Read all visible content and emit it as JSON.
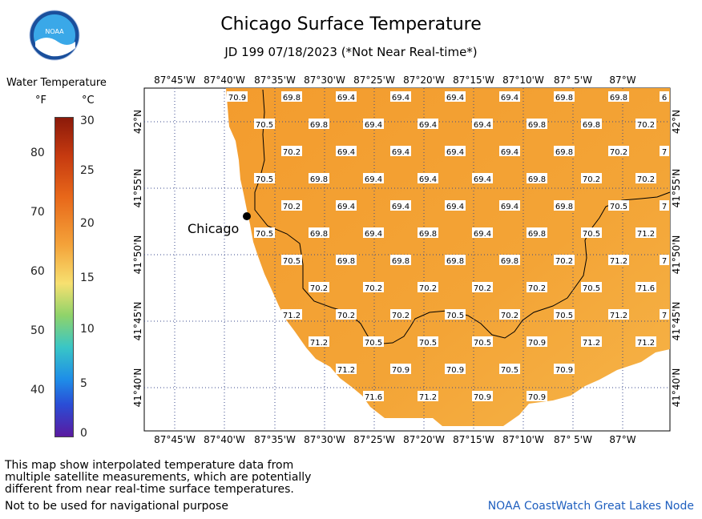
{
  "header": {
    "title": "Chicago Surface Temperature",
    "subtitle": "JD 199 07/18/2023 (*Not Near Real-time*)",
    "logo_text": "NOAA"
  },
  "legend": {
    "title": "Water Temperature",
    "unit_f": "°F",
    "unit_c": "°C",
    "f_ticks": [
      "80",
      "70",
      "60",
      "50",
      "40"
    ],
    "c_ticks": [
      "30",
      "25",
      "20",
      "15",
      "10",
      "5",
      "0"
    ]
  },
  "map": {
    "top_lon_labels": [
      "87°45'W",
      "87°40'W",
      "87°35'W",
      "87°30'W",
      "87°25'W",
      "87°20'W",
      "87°15'W",
      "87°10'W",
      "87° 5'W",
      "87°W"
    ],
    "bottom_lon_labels": [
      "87°45'W",
      "87°40'W",
      "87°35'W",
      "87°30'W",
      "87°25'W",
      "87°20'W",
      "87°15'W",
      "87°10'W",
      "87° 5'W",
      "87°W"
    ],
    "left_lat_labels": [
      "42°N",
      "41°55'N",
      "41°50'N",
      "41°45'N",
      "41°40'N"
    ],
    "right_lat_labels": [
      "42°N",
      "41°55'N",
      "41°50'N",
      "41°45'N",
      "41°40'N"
    ],
    "city_label": "Chicago",
    "temp_rows": [
      [
        "70.9",
        "69.8",
        "69.4",
        "69.4",
        "69.4",
        "69.4",
        "69.8",
        "69.8",
        "6"
      ],
      [
        "70.5",
        "69.8",
        "69.4",
        "69.4",
        "69.4",
        "69.8",
        "69.8",
        "70.2"
      ],
      [
        "70.2",
        "69.4",
        "69.4",
        "69.4",
        "69.4",
        "69.8",
        "70.2",
        "7"
      ],
      [
        "70.5",
        "69.8",
        "69.4",
        "69.4",
        "69.4",
        "69.8",
        "70.2",
        "70.2"
      ],
      [
        "70.2",
        "69.4",
        "69.4",
        "69.4",
        "69.4",
        "69.8",
        "70.5",
        "7"
      ],
      [
        "70.5",
        "69.8",
        "69.4",
        "69.8",
        "69.4",
        "69.8",
        "70.5",
        "71.2"
      ],
      [
        "70.5",
        "69.8",
        "69.8",
        "69.8",
        "69.8",
        "70.2",
        "71.2",
        "7"
      ],
      [
        "70.2",
        "70.2",
        "70.2",
        "70.2",
        "70.2",
        "70.5",
        "71.6"
      ],
      [
        "71.2",
        "70.2",
        "70.2",
        "70.5",
        "70.2",
        "70.5",
        "71.2",
        "7"
      ],
      [
        "71.2",
        "70.5",
        "70.5",
        "70.5",
        "70.9",
        "71.2",
        "71.2"
      ],
      [
        "71.2",
        "70.9",
        "70.9",
        "70.5",
        "70.9"
      ],
      [
        "71.6",
        "71.2",
        "70.9",
        "70.9"
      ]
    ]
  },
  "footer": {
    "note_line1": "This map show interpolated temperature data from",
    "note_line2": "multiple satellite measurements, which are potentially",
    "note_line3": "different from near real-time surface temperatures.",
    "navigation_note": "Not to be used for navigational purpose",
    "credit": "NOAA CoastWatch Great Lakes Node"
  },
  "colors": {
    "water": "#f2a334",
    "water_light": "#f6b644",
    "label_box": "#ffffff",
    "credit_text": "#1f5fbf"
  }
}
